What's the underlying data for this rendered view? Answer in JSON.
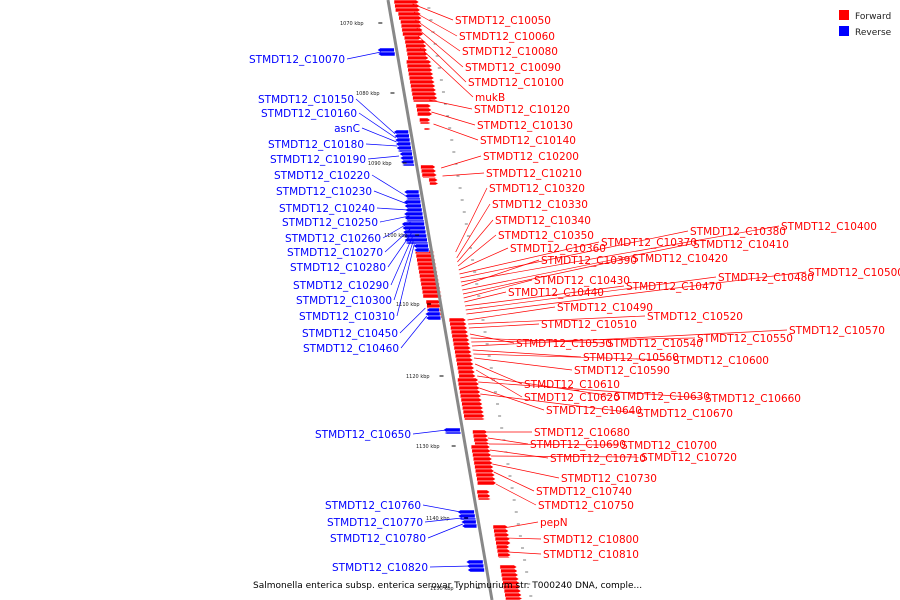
{
  "colors": {
    "forward": "#ff0000",
    "reverse": "#0000ff",
    "backbone": "#888888"
  },
  "legend": [
    {
      "name": "legend-forward",
      "label": "Forward",
      "color": "#ff0000"
    },
    {
      "name": "legend-reverse",
      "label": "Reverse",
      "color": "#0000ff"
    }
  ],
  "caption": "Salmonella enterica subsp. enterica serovar Typhimurium str. T000240 DNA, comple...",
  "ticks": [
    "1070 kbp",
    "1080 kbp",
    "1090 kbp",
    "1100 kbp",
    "1110 kbp",
    "1120 kbp",
    "1130 kbp",
    "1140 kbp",
    "1150 kbp"
  ],
  "forward_genes": [
    "STMDT12_C10050",
    "STMDT12_C10060",
    "STMDT12_C10080",
    "STMDT12_C10090",
    "STMDT12_C10100",
    "mukB",
    "STMDT12_C10120",
    "STMDT12_C10130",
    "STMDT12_C10140",
    "STMDT12_C10200",
    "STMDT12_C10210",
    "STMDT12_C10320",
    "STMDT12_C10330",
    "STMDT12_C10340",
    "STMDT12_C10350",
    "STMDT12_C10360",
    "STMDT12_C10370",
    "STMDT12_C10380",
    "STMDT12_C10400",
    "STMDT12_C10390",
    "STMDT12_C10410",
    "STMDT12_C10420",
    "STMDT12_C10430",
    "STMDT12_C10440",
    "STMDT12_C10470",
    "STMDT12_C10480",
    "STMDT12_C10500",
    "STMDT12_C10490",
    "STMDT12_C10520",
    "STMDT12_C10510",
    "STMDT12_C10530",
    "STMDT12_C10540",
    "STMDT12_C10550",
    "STMDT12_C10570",
    "STMDT12_C10560",
    "STMDT12_C10600",
    "STMDT12_C10590",
    "STMDT12_C10610",
    "STMDT12_C10620",
    "STMDT12_C10630",
    "STMDT12_C10660",
    "STMDT12_C10640",
    "STMDT12_C10670",
    "STMDT12_C10680",
    "STMDT12_C10690",
    "STMDT12_C10700",
    "STMDT12_C10710",
    "STMDT12_C10720",
    "STMDT12_C10730",
    "STMDT12_C10740",
    "STMDT12_C10750",
    "pepN",
    "STMDT12_C10800",
    "STMDT12_C10810"
  ],
  "reverse_genes": [
    "STMDT12_C10070",
    "STMDT12_C10150",
    "STMDT12_C10160",
    "asnC",
    "STMDT12_C10180",
    "STMDT12_C10190",
    "STMDT12_C10220",
    "STMDT12_C10230",
    "STMDT12_C10240",
    "STMDT12_C10250",
    "STMDT12_C10260",
    "STMDT12_C10270",
    "STMDT12_C10280",
    "STMDT12_C10290",
    "STMDT12_C10300",
    "STMDT12_C10310",
    "STMDT12_C10450",
    "STMDT12_C10460",
    "STMDT12_C10650",
    "STMDT12_C10760",
    "STMDT12_C10770",
    "STMDT12_C10780",
    "STMDT12_C10820"
  ]
}
